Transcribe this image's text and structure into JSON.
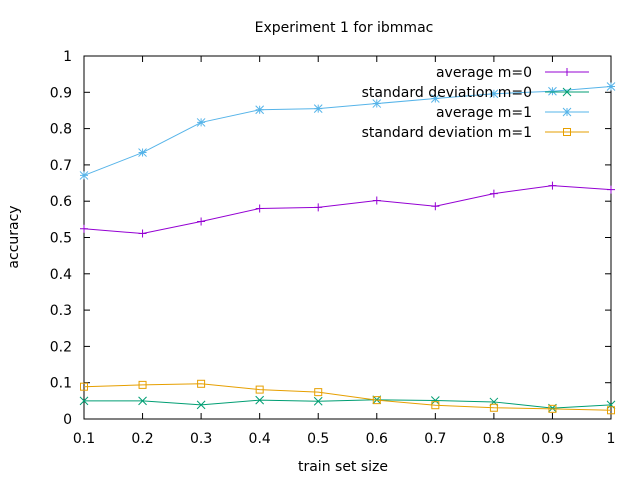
{
  "chart_data": {
    "type": "line",
    "title": "Experiment 1 for ibmmac",
    "xlabel": "train set size",
    "ylabel": "accuracy",
    "xlim": [
      0.1,
      1
    ],
    "ylim": [
      0,
      1
    ],
    "grid": false,
    "legend_position": "top-right",
    "x": [
      0.1,
      0.2,
      0.3,
      0.4,
      0.5,
      0.6,
      0.7,
      0.8,
      0.9,
      1.0
    ],
    "xticks": [
      "0.1",
      "0.2",
      "0.3",
      "0.4",
      "0.5",
      "0.6",
      "0.7",
      "0.8",
      "0.9",
      "1"
    ],
    "yticks": [
      "0",
      "0.1",
      "0.2",
      "0.3",
      "0.4",
      "0.5",
      "0.6",
      "0.7",
      "0.8",
      "0.9",
      "1"
    ],
    "series": [
      {
        "name": "average m=0",
        "color": "#9400d3",
        "marker": "plus",
        "values": [
          0.524,
          0.511,
          0.544,
          0.58,
          0.583,
          0.602,
          0.586,
          0.621,
          0.643,
          0.632
        ]
      },
      {
        "name": "standard deviation m=0",
        "color": "#009e73",
        "marker": "cross",
        "values": [
          0.05,
          0.05,
          0.039,
          0.052,
          0.049,
          0.053,
          0.051,
          0.047,
          0.03,
          0.039
        ]
      },
      {
        "name": "average m=1",
        "color": "#56b4e9",
        "marker": "star",
        "values": [
          0.671,
          0.734,
          0.817,
          0.852,
          0.855,
          0.869,
          0.883,
          0.896,
          0.903,
          0.916
        ]
      },
      {
        "name": "standard deviation m=1",
        "color": "#e69f00",
        "marker": "square",
        "values": [
          0.089,
          0.094,
          0.097,
          0.081,
          0.074,
          0.052,
          0.038,
          0.031,
          0.028,
          0.024
        ]
      }
    ]
  }
}
